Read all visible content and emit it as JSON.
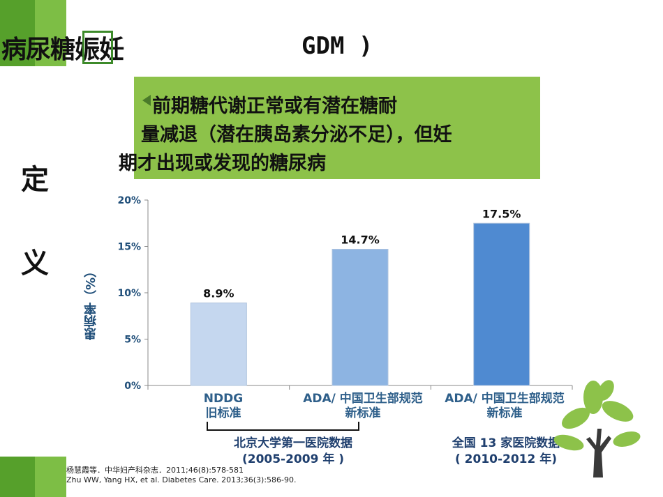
{
  "header": {
    "title_left": "病尿糖娠妊",
    "title_right": "GDM )"
  },
  "sidebar": {
    "char1": "定",
    "char2": "义"
  },
  "definition": {
    "line1": "前期糖代谢正常或有潜在糖耐",
    "line2": "量减退（潜在胰岛素分泌不足），但妊",
    "line3": "期才出现或发现的糖尿病"
  },
  "chart_data": {
    "type": "bar",
    "categories": [
      "NDDG 旧标准",
      "ADA/ 中国卫生部规范 新标准",
      "ADA/ 中国卫生部规范 新标准"
    ],
    "category_lines": [
      [
        "NDDG",
        "旧标准"
      ],
      [
        "ADA/ 中国卫生部规范",
        "新标准"
      ],
      [
        "ADA/ 中国卫生部规范",
        "新标准"
      ]
    ],
    "values": [
      8.9,
      14.7,
      17.5
    ],
    "data_labels": [
      "8.9%",
      "14.7%",
      "17.5%"
    ],
    "bar_colors": [
      "#c5d7ef",
      "#8db4e2",
      "#4f8ad1"
    ],
    "ylabel": "患病率（%）",
    "ylim": [
      0,
      20
    ],
    "yticks": [
      "0%",
      "5%",
      "10%",
      "15%",
      "20%"
    ],
    "ytick_values": [
      0,
      5,
      10,
      15,
      20
    ],
    "groups": [
      {
        "line1": "北京大学第一医院数据",
        "line2": "(2005-2009 年 )"
      },
      {
        "line1": "全国 13 家医院数据",
        "line2": "( 2010-2012 年)"
      }
    ]
  },
  "references": {
    "ref1": "杨慧霞等．中华妇产科杂志．2011;46(8):578-581",
    "ref2": "Zhu WW, Yang HX, et al. Diabetes Care. 2013;36(3):586-90."
  },
  "colors": {
    "green_dark": "#56a02b",
    "green_box": "#8dc24a",
    "axis_text": "#1f4e79"
  },
  "icons": {
    "decoration": "tree-icon"
  }
}
